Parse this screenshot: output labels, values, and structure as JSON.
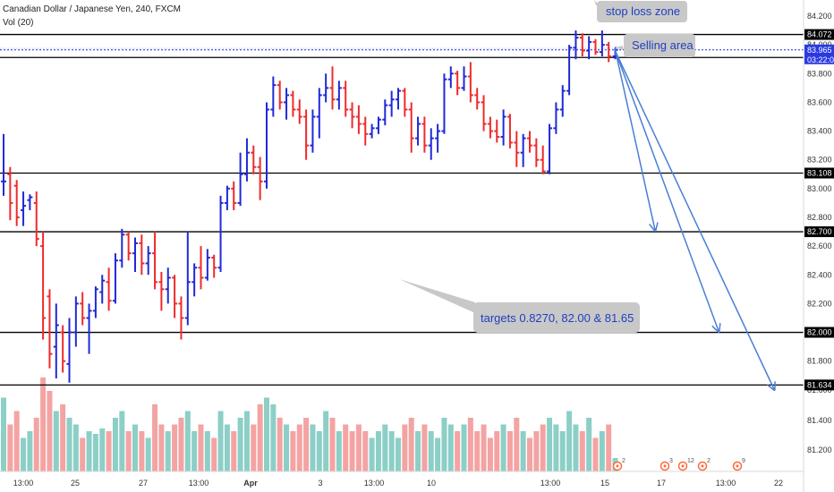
{
  "header": {
    "title": "Canadian Dollar / Japanese Yen, 240, FXCM",
    "volume_label": "Vol (20)"
  },
  "colors": {
    "up": "#1f2ad6",
    "down": "#ef2b2b",
    "vol_up": "#8ccfc7",
    "vol_down": "#f4a3a3",
    "level_line": "#000000",
    "arrow": "#4a7ed6",
    "note_bg": "#c8c8c8",
    "note_text": "#1f3fbf",
    "current_price_bg": "#2a3ae0",
    "event_marker": "#ff6a3d"
  },
  "price_axis": {
    "ticks": [
      "84.200",
      "84.000",
      "83.800",
      "83.600",
      "83.400",
      "83.200",
      "83.000",
      "82.800",
      "82.600",
      "82.400",
      "82.200",
      "82.000",
      "81.800",
      "81.600",
      "81.400",
      "81.200"
    ],
    "current_price": "83.965",
    "countdown": "03:22:06"
  },
  "time_axis": {
    "labels": [
      "13:00",
      "25",
      "27",
      "13:00",
      "Apr",
      "3",
      "13:00",
      "10",
      "13:00",
      "15",
      "17",
      "13:00",
      "22"
    ]
  },
  "levels": [
    {
      "label": "84.072",
      "value": 84.072
    },
    {
      "label": "83.912",
      "value": 83.912
    },
    {
      "label": "83.108",
      "value": 83.108
    },
    {
      "label": "82.700",
      "value": 82.7
    },
    {
      "label": "82.000",
      "value": 82.0
    },
    {
      "label": "81.634",
      "value": 81.634
    }
  ],
  "annotations": {
    "stop_loss": "stop loss zone",
    "selling_area": "Selling area",
    "targets": "targets 0.8270, 82.00 & 81.65"
  },
  "events": [
    {
      "count": "2"
    },
    {
      "count": "3"
    },
    {
      "count": "12"
    },
    {
      "count": "2"
    },
    {
      "count": "9"
    }
  ],
  "chart_data": {
    "type": "ohlc",
    "title": "Canadian Dollar / Japanese Yen, 240, FXCM",
    "y_range": [
      81.1,
      84.3
    ],
    "grid": false,
    "bars": [
      {
        "o": 83.05,
        "h": 83.38,
        "l": 82.95,
        "c": 83.05,
        "v": 0.55
      },
      {
        "o": 83.1,
        "h": 83.15,
        "l": 82.78,
        "c": 82.9,
        "v": 0.35
      },
      {
        "o": 83.02,
        "h": 83.06,
        "l": 82.74,
        "c": 82.8,
        "v": 0.45
      },
      {
        "o": 82.85,
        "h": 82.98,
        "l": 82.74,
        "c": 82.88,
        "v": 0.25
      },
      {
        "o": 82.92,
        "h": 82.96,
        "l": 82.85,
        "c": 82.94,
        "v": 0.3
      },
      {
        "o": 82.9,
        "h": 82.98,
        "l": 82.6,
        "c": 82.65,
        "v": 0.4
      },
      {
        "o": 82.6,
        "h": 82.7,
        "l": 81.95,
        "c": 82.1,
        "v": 0.7
      },
      {
        "o": 82.25,
        "h": 82.3,
        "l": 81.75,
        "c": 81.85,
        "v": 0.6
      },
      {
        "o": 81.9,
        "h": 82.2,
        "l": 81.68,
        "c": 82.05,
        "v": 0.45
      },
      {
        "o": 82.0,
        "h": 82.05,
        "l": 81.72,
        "c": 81.8,
        "v": 0.5
      },
      {
        "o": 81.78,
        "h": 82.1,
        "l": 81.65,
        "c": 82.0,
        "v": 0.4
      },
      {
        "o": 82.0,
        "h": 82.25,
        "l": 81.9,
        "c": 82.2,
        "v": 0.35
      },
      {
        "o": 82.2,
        "h": 82.28,
        "l": 82.05,
        "c": 82.1,
        "v": 0.25
      },
      {
        "o": 82.1,
        "h": 82.2,
        "l": 81.85,
        "c": 82.15,
        "v": 0.3
      },
      {
        "o": 82.15,
        "h": 82.32,
        "l": 82.1,
        "c": 82.3,
        "v": 0.28
      },
      {
        "o": 82.28,
        "h": 82.4,
        "l": 82.2,
        "c": 82.36,
        "v": 0.32
      },
      {
        "o": 82.35,
        "h": 82.45,
        "l": 82.15,
        "c": 82.22,
        "v": 0.3
      },
      {
        "o": 82.22,
        "h": 82.55,
        "l": 82.2,
        "c": 82.5,
        "v": 0.4
      },
      {
        "o": 82.5,
        "h": 82.72,
        "l": 82.45,
        "c": 82.68,
        "v": 0.45
      },
      {
        "o": 82.68,
        "h": 82.7,
        "l": 82.5,
        "c": 82.55,
        "v": 0.3
      },
      {
        "o": 82.55,
        "h": 82.66,
        "l": 82.42,
        "c": 82.62,
        "v": 0.35
      },
      {
        "o": 82.62,
        "h": 82.68,
        "l": 82.4,
        "c": 82.48,
        "v": 0.3
      },
      {
        "o": 82.48,
        "h": 82.6,
        "l": 82.4,
        "c": 82.55,
        "v": 0.25
      },
      {
        "o": 82.55,
        "h": 82.7,
        "l": 82.3,
        "c": 82.35,
        "v": 0.5
      },
      {
        "o": 82.35,
        "h": 82.42,
        "l": 82.15,
        "c": 82.3,
        "v": 0.35
      },
      {
        "o": 82.3,
        "h": 82.45,
        "l": 82.2,
        "c": 82.38,
        "v": 0.3
      },
      {
        "o": 82.38,
        "h": 82.4,
        "l": 82.1,
        "c": 82.2,
        "v": 0.35
      },
      {
        "o": 82.2,
        "h": 82.25,
        "l": 81.95,
        "c": 82.1,
        "v": 0.4
      },
      {
        "o": 82.1,
        "h": 82.7,
        "l": 82.05,
        "c": 82.35,
        "v": 0.45
      },
      {
        "o": 82.35,
        "h": 82.48,
        "l": 82.25,
        "c": 82.45,
        "v": 0.3
      },
      {
        "o": 82.45,
        "h": 82.6,
        "l": 82.3,
        "c": 82.38,
        "v": 0.35
      },
      {
        "o": 82.38,
        "h": 82.58,
        "l": 82.36,
        "c": 82.52,
        "v": 0.3
      },
      {
        "o": 82.52,
        "h": 82.54,
        "l": 82.38,
        "c": 82.45,
        "v": 0.25
      },
      {
        "o": 82.45,
        "h": 82.95,
        "l": 82.42,
        "c": 82.9,
        "v": 0.45
      },
      {
        "o": 82.9,
        "h": 83.02,
        "l": 82.85,
        "c": 83.0,
        "v": 0.35
      },
      {
        "o": 83.0,
        "h": 83.05,
        "l": 82.85,
        "c": 82.9,
        "v": 0.3
      },
      {
        "o": 82.9,
        "h": 83.25,
        "l": 82.88,
        "c": 83.1,
        "v": 0.4
      },
      {
        "o": 83.1,
        "h": 83.35,
        "l": 83.05,
        "c": 83.25,
        "v": 0.45
      },
      {
        "o": 83.25,
        "h": 83.3,
        "l": 83.1,
        "c": 83.15,
        "v": 0.35
      },
      {
        "o": 83.15,
        "h": 83.22,
        "l": 82.92,
        "c": 83.05,
        "v": 0.5
      },
      {
        "o": 83.05,
        "h": 83.6,
        "l": 83.0,
        "c": 83.55,
        "v": 0.55
      },
      {
        "o": 83.55,
        "h": 83.78,
        "l": 83.5,
        "c": 83.72,
        "v": 0.5
      },
      {
        "o": 83.72,
        "h": 83.75,
        "l": 83.55,
        "c": 83.6,
        "v": 0.4
      },
      {
        "o": 83.6,
        "h": 83.7,
        "l": 83.48,
        "c": 83.65,
        "v": 0.35
      },
      {
        "o": 83.65,
        "h": 83.68,
        "l": 83.5,
        "c": 83.55,
        "v": 0.3
      },
      {
        "o": 83.55,
        "h": 83.62,
        "l": 83.45,
        "c": 83.5,
        "v": 0.35
      },
      {
        "o": 83.5,
        "h": 83.55,
        "l": 83.2,
        "c": 83.3,
        "v": 0.4
      },
      {
        "o": 83.3,
        "h": 83.55,
        "l": 83.25,
        "c": 83.5,
        "v": 0.35
      },
      {
        "o": 83.5,
        "h": 83.7,
        "l": 83.35,
        "c": 83.65,
        "v": 0.3
      },
      {
        "o": 83.65,
        "h": 83.8,
        "l": 83.6,
        "c": 83.7,
        "v": 0.45
      },
      {
        "o": 83.7,
        "h": 83.85,
        "l": 83.55,
        "c": 83.62,
        "v": 0.4
      },
      {
        "o": 83.62,
        "h": 83.75,
        "l": 83.55,
        "c": 83.7,
        "v": 0.3
      },
      {
        "o": 83.7,
        "h": 83.75,
        "l": 83.5,
        "c": 83.55,
        "v": 0.35
      },
      {
        "o": 83.55,
        "h": 83.6,
        "l": 83.42,
        "c": 83.5,
        "v": 0.3
      },
      {
        "o": 83.5,
        "h": 83.58,
        "l": 83.38,
        "c": 83.45,
        "v": 0.35
      },
      {
        "o": 83.45,
        "h": 83.5,
        "l": 83.3,
        "c": 83.38,
        "v": 0.3
      },
      {
        "o": 83.38,
        "h": 83.45,
        "l": 83.35,
        "c": 83.42,
        "v": 0.25
      },
      {
        "o": 83.42,
        "h": 83.5,
        "l": 83.38,
        "c": 83.48,
        "v": 0.3
      },
      {
        "o": 83.48,
        "h": 83.62,
        "l": 83.44,
        "c": 83.58,
        "v": 0.35
      },
      {
        "o": 83.58,
        "h": 83.68,
        "l": 83.5,
        "c": 83.62,
        "v": 0.3
      },
      {
        "o": 83.62,
        "h": 83.7,
        "l": 83.55,
        "c": 83.68,
        "v": 0.25
      },
      {
        "o": 83.68,
        "h": 83.7,
        "l": 83.5,
        "c": 83.55,
        "v": 0.35
      },
      {
        "o": 83.55,
        "h": 83.6,
        "l": 83.25,
        "c": 83.35,
        "v": 0.4
      },
      {
        "o": 83.35,
        "h": 83.5,
        "l": 83.3,
        "c": 83.45,
        "v": 0.3
      },
      {
        "o": 83.45,
        "h": 83.5,
        "l": 83.25,
        "c": 83.3,
        "v": 0.35
      },
      {
        "o": 83.3,
        "h": 83.42,
        "l": 83.2,
        "c": 83.35,
        "v": 0.3
      },
      {
        "o": 83.35,
        "h": 83.45,
        "l": 83.25,
        "c": 83.4,
        "v": 0.25
      },
      {
        "o": 83.4,
        "h": 83.8,
        "l": 83.38,
        "c": 83.76,
        "v": 0.4
      },
      {
        "o": 83.76,
        "h": 83.85,
        "l": 83.7,
        "c": 83.8,
        "v": 0.35
      },
      {
        "o": 83.8,
        "h": 83.82,
        "l": 83.65,
        "c": 83.7,
        "v": 0.3
      },
      {
        "o": 83.7,
        "h": 83.85,
        "l": 83.68,
        "c": 83.78,
        "v": 0.35
      },
      {
        "o": 83.78,
        "h": 83.88,
        "l": 83.6,
        "c": 83.65,
        "v": 0.4
      },
      {
        "o": 83.65,
        "h": 83.7,
        "l": 83.55,
        "c": 83.6,
        "v": 0.3
      },
      {
        "o": 83.6,
        "h": 83.65,
        "l": 83.4,
        "c": 83.45,
        "v": 0.35
      },
      {
        "o": 83.45,
        "h": 83.5,
        "l": 83.35,
        "c": 83.4,
        "v": 0.25
      },
      {
        "o": 83.4,
        "h": 83.48,
        "l": 83.32,
        "c": 83.36,
        "v": 0.3
      },
      {
        "o": 83.36,
        "h": 83.55,
        "l": 83.3,
        "c": 83.5,
        "v": 0.35
      },
      {
        "o": 83.5,
        "h": 83.52,
        "l": 83.28,
        "c": 83.32,
        "v": 0.3
      },
      {
        "o": 83.32,
        "h": 83.4,
        "l": 83.15,
        "c": 83.25,
        "v": 0.4
      },
      {
        "o": 83.25,
        "h": 83.38,
        "l": 83.15,
        "c": 83.35,
        "v": 0.3
      },
      {
        "o": 83.35,
        "h": 83.4,
        "l": 83.25,
        "c": 83.3,
        "v": 0.25
      },
      {
        "o": 83.3,
        "h": 83.35,
        "l": 83.15,
        "c": 83.2,
        "v": 0.3
      },
      {
        "o": 83.2,
        "h": 83.3,
        "l": 83.1,
        "c": 83.12,
        "v": 0.35
      },
      {
        "o": 83.12,
        "h": 83.45,
        "l": 83.1,
        "c": 83.42,
        "v": 0.4
      },
      {
        "o": 83.42,
        "h": 83.6,
        "l": 83.38,
        "c": 83.55,
        "v": 0.35
      },
      {
        "o": 83.55,
        "h": 83.72,
        "l": 83.5,
        "c": 83.68,
        "v": 0.3
      },
      {
        "o": 83.68,
        "h": 84.0,
        "l": 83.65,
        "c": 83.98,
        "v": 0.45
      },
      {
        "o": 83.98,
        "h": 84.1,
        "l": 83.9,
        "c": 84.05,
        "v": 0.35
      },
      {
        "o": 84.05,
        "h": 84.08,
        "l": 83.92,
        "c": 83.96,
        "v": 0.3
      },
      {
        "o": 83.96,
        "h": 84.06,
        "l": 83.9,
        "c": 84.02,
        "v": 0.4
      },
      {
        "o": 84.02,
        "h": 84.04,
        "l": 83.93,
        "c": 83.95,
        "v": 0.25
      },
      {
        "o": 83.95,
        "h": 84.1,
        "l": 83.92,
        "c": 84.0,
        "v": 0.3
      },
      {
        "o": 84.0,
        "h": 84.02,
        "l": 83.88,
        "c": 83.92,
        "v": 0.35
      },
      {
        "o": 83.92,
        "h": 83.98,
        "l": 83.9,
        "c": 83.965,
        "v": 0.1
      }
    ]
  }
}
